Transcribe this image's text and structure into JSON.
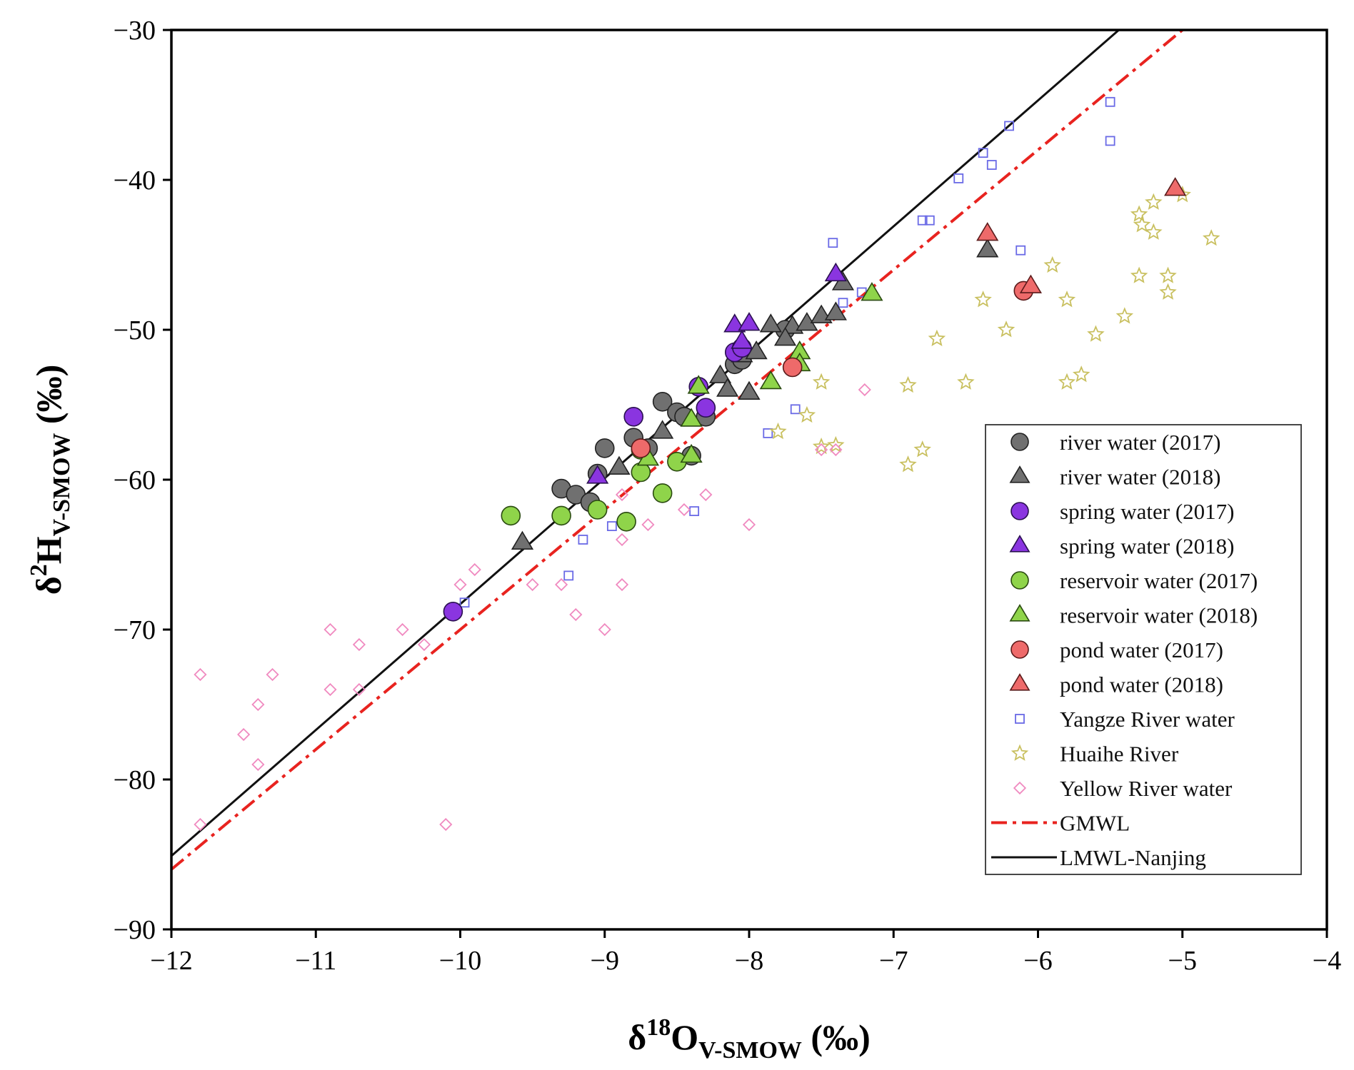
{
  "chart_data": {
    "type": "scatter",
    "title": "",
    "xlabel": {
      "delta": "δ",
      "sup": "18",
      "main": "O",
      "sub": "V-SMOW",
      "unit": " (‰)"
    },
    "ylabel": {
      "delta": "δ",
      "sup": "2",
      "main": "H",
      "sub": "V-SMOW",
      "unit": " (‰)"
    },
    "xlim": [
      -12,
      -4
    ],
    "ylim": [
      -90,
      -30
    ],
    "xticks": [
      -12,
      -11,
      -10,
      -9,
      -8,
      -7,
      -6,
      -5,
      -4
    ],
    "yticks": [
      -90,
      -80,
      -70,
      -60,
      -50,
      -40,
      -30
    ],
    "xtick_labels": [
      "−12",
      "−11",
      "−10",
      "−9",
      "−8",
      "−7",
      "−6",
      "−5",
      "−4"
    ],
    "ytick_labels": [
      "−90",
      "−80",
      "−70",
      "−60",
      "−50",
      "−40",
      "−30"
    ],
    "grid": false,
    "legend_position": "bottom-right",
    "lines": [
      {
        "name": "GMWL",
        "slope": 8,
        "intercept": 10,
        "color": "#e8231f",
        "dash": "dashdot"
      },
      {
        "name": "LMWL-Nanjing",
        "slope": 8.4,
        "intercept": 15.7,
        "color": "#111111",
        "dash": "solid"
      }
    ],
    "series": [
      {
        "name": "river water (2017)",
        "marker": "circle",
        "fill": "#707070",
        "stroke": "#222222",
        "points": [
          [
            -9.3,
            -60.6
          ],
          [
            -9.2,
            -61
          ],
          [
            -9.1,
            -61.5
          ],
          [
            -9.05,
            -59.6
          ],
          [
            -9.0,
            -57.9
          ],
          [
            -8.8,
            -57.2
          ],
          [
            -8.7,
            -57.9
          ],
          [
            -8.6,
            -54.8
          ],
          [
            -8.5,
            -55.5
          ],
          [
            -8.45,
            -55.8
          ],
          [
            -8.3,
            -55.8
          ],
          [
            -8.4,
            -58.4
          ],
          [
            -8.1,
            -52.3
          ],
          [
            -8.05,
            -52.0
          ],
          [
            -7.75,
            -50.0
          ]
        ]
      },
      {
        "name": "river water (2018)",
        "marker": "triangle",
        "fill": "#707070",
        "stroke": "#222222",
        "points": [
          [
            -9.57,
            -64.2
          ],
          [
            -8.9,
            -59.2
          ],
          [
            -8.6,
            -56.8
          ],
          [
            -8.2,
            -53.1
          ],
          [
            -8.15,
            -54.0
          ],
          [
            -8.0,
            -54.2
          ],
          [
            -8.05,
            -51.7
          ],
          [
            -7.95,
            -51.5
          ],
          [
            -7.85,
            -49.7
          ],
          [
            -7.7,
            -49.8
          ],
          [
            -7.75,
            -50.6
          ],
          [
            -7.6,
            -49.6
          ],
          [
            -7.5,
            -49.1
          ],
          [
            -7.4,
            -48.9
          ],
          [
            -7.35,
            -46.9
          ],
          [
            -6.35,
            -44.7
          ]
        ]
      },
      {
        "name": "spring water (2017)",
        "marker": "circle",
        "fill": "#8a35e0",
        "stroke": "#2a1050",
        "points": [
          [
            -10.05,
            -68.8
          ],
          [
            -8.8,
            -55.8
          ],
          [
            -8.35,
            -53.8
          ],
          [
            -8.3,
            -55.2
          ],
          [
            -8.1,
            -51.5
          ],
          [
            -8.05,
            -51.2
          ]
        ]
      },
      {
        "name": "spring water (2018)",
        "marker": "triangle",
        "fill": "#8a35e0",
        "stroke": "#2a1050",
        "points": [
          [
            -9.05,
            -59.8
          ],
          [
            -8.1,
            -49.7
          ],
          [
            -8.0,
            -49.6
          ],
          [
            -8.05,
            -50.8
          ],
          [
            -7.4,
            -46.3
          ]
        ]
      },
      {
        "name": "reservoir water (2017)",
        "marker": "circle",
        "fill": "#8fd44a",
        "stroke": "#2a4a10",
        "points": [
          [
            -9.65,
            -62.4
          ],
          [
            -9.3,
            -62.4
          ],
          [
            -9.05,
            -62
          ],
          [
            -8.85,
            -62.8
          ],
          [
            -8.75,
            -59.5
          ],
          [
            -8.75,
            -58
          ],
          [
            -8.6,
            -60.9
          ],
          [
            -8.5,
            -58.8
          ]
        ]
      },
      {
        "name": "reservoir water (2018)",
        "marker": "triangle",
        "fill": "#8fd44a",
        "stroke": "#2a4a10",
        "points": [
          [
            -8.7,
            -58.6
          ],
          [
            -8.4,
            -58.4
          ],
          [
            -8.4,
            -56
          ],
          [
            -8.35,
            -53.8
          ],
          [
            -7.85,
            -53.5
          ],
          [
            -7.65,
            -51.5
          ],
          [
            -7.65,
            -52.3
          ],
          [
            -7.15,
            -47.6
          ]
        ]
      },
      {
        "name": "pond water (2017)",
        "marker": "circle",
        "fill": "#ee6a6a",
        "stroke": "#5a1a1a",
        "points": [
          [
            -8.75,
            -57.9
          ],
          [
            -7.7,
            -52.5
          ],
          [
            -6.1,
            -47.4
          ]
        ]
      },
      {
        "name": "pond water (2018)",
        "marker": "triangle",
        "fill": "#ee6a6a",
        "stroke": "#5a1a1a",
        "points": [
          [
            -6.35,
            -43.6
          ],
          [
            -6.05,
            -47.1
          ],
          [
            -5.05,
            -40.6
          ]
        ]
      },
      {
        "name": "Yangze River water",
        "marker": "square",
        "fill": "none",
        "stroke": "#6a6ae6",
        "points": [
          [
            -9.97,
            -68.2
          ],
          [
            -9.25,
            -66.4
          ],
          [
            -9.15,
            -64
          ],
          [
            -8.95,
            -63.1
          ],
          [
            -8.38,
            -62.1
          ],
          [
            -7.87,
            -56.9
          ],
          [
            -7.68,
            -55.3
          ],
          [
            -7.42,
            -44.2
          ],
          [
            -7.35,
            -48.2
          ],
          [
            -7.22,
            -47.5
          ],
          [
            -6.8,
            -42.7
          ],
          [
            -6.75,
            -42.7
          ],
          [
            -6.55,
            -39.9
          ],
          [
            -6.38,
            -38.2
          ],
          [
            -6.32,
            -39.0
          ],
          [
            -6.2,
            -36.4
          ],
          [
            -6.12,
            -44.7
          ],
          [
            -5.5,
            -34.8
          ],
          [
            -5.5,
            -37.4
          ]
        ]
      },
      {
        "name": "Huaihe River",
        "marker": "star",
        "fill": "none",
        "stroke": "#c9c060",
        "points": [
          [
            -7.8,
            -56.8
          ],
          [
            -7.6,
            -55.7
          ],
          [
            -7.5,
            -53.5
          ],
          [
            -7.5,
            -57.8
          ],
          [
            -7.4,
            -57.7
          ],
          [
            -6.9,
            -53.7
          ],
          [
            -6.9,
            -59
          ],
          [
            -6.8,
            -58
          ],
          [
            -6.7,
            -50.6
          ],
          [
            -6.5,
            -53.5
          ],
          [
            -6.38,
            -48
          ],
          [
            -6.22,
            -50
          ],
          [
            -5.9,
            -45.7
          ],
          [
            -5.8,
            -48
          ],
          [
            -5.8,
            -53.5
          ],
          [
            -5.7,
            -53
          ],
          [
            -5.6,
            -50.3
          ],
          [
            -5.4,
            -49.1
          ],
          [
            -5.3,
            -46.4
          ],
          [
            -5.3,
            -42.3
          ],
          [
            -5.28,
            -43.0
          ],
          [
            -5.2,
            -41.5
          ],
          [
            -5.2,
            -43.5
          ],
          [
            -5.1,
            -46.4
          ],
          [
            -5.1,
            -47.5
          ],
          [
            -5.0,
            -41
          ],
          [
            -4.8,
            -43.9
          ]
        ]
      },
      {
        "name": "Yellow River water",
        "marker": "diamond",
        "fill": "none",
        "stroke": "#f08ac0",
        "points": [
          [
            -11.8,
            -73
          ],
          [
            -11.8,
            -83
          ],
          [
            -11.5,
            -77
          ],
          [
            -11.4,
            -75
          ],
          [
            -11.4,
            -79
          ],
          [
            -11.3,
            -73
          ],
          [
            -10.9,
            -70
          ],
          [
            -10.9,
            -74
          ],
          [
            -10.7,
            -71
          ],
          [
            -10.7,
            -74
          ],
          [
            -10.4,
            -70
          ],
          [
            -10.25,
            -71
          ],
          [
            -10.1,
            -83
          ],
          [
            -10.0,
            -67
          ],
          [
            -9.9,
            -66
          ],
          [
            -9.5,
            -67
          ],
          [
            -9.3,
            -67
          ],
          [
            -9.2,
            -69
          ],
          [
            -9.0,
            -70
          ],
          [
            -8.88,
            -61
          ],
          [
            -8.88,
            -64
          ],
          [
            -8.88,
            -67
          ],
          [
            -8.7,
            -63
          ],
          [
            -8.45,
            -62
          ],
          [
            -8.3,
            -61
          ],
          [
            -8.0,
            -63
          ],
          [
            -7.5,
            -58
          ],
          [
            -7.4,
            -58
          ],
          [
            -7.2,
            -54
          ]
        ]
      }
    ]
  }
}
